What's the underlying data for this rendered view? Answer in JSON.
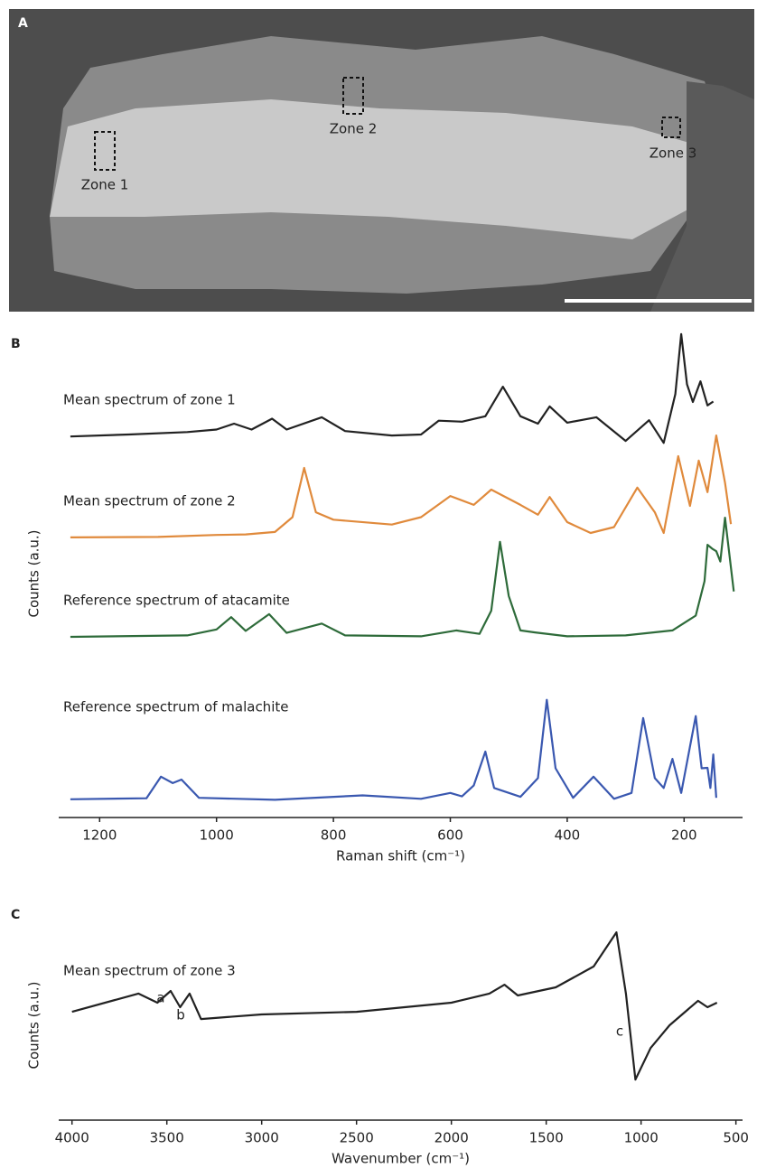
{
  "panels": [
    "A",
    "B",
    "C"
  ],
  "image": {
    "zones": [
      "Zone 1",
      "Zone 2",
      "Zone 3"
    ]
  },
  "chart_data": [
    {
      "type": "line",
      "xlabel": "Raman shift (cm⁻¹)",
      "ylabel": "Counts (a.u.)",
      "xlim": [
        1270,
        100
      ],
      "xticks": [
        1200,
        1000,
        800,
        600,
        400,
        200
      ],
      "ylim": [
        0,
        100
      ],
      "series": [
        {
          "name": "Mean spectrum of zone 1",
          "color": "#222222",
          "x": [
            1250,
            1150,
            1050,
            1000,
            970,
            940,
            905,
            880,
            820,
            780,
            700,
            650,
            620,
            580,
            540,
            510,
            480,
            450,
            430,
            400,
            350,
            300,
            260,
            235,
            215,
            205,
            195,
            185,
            172,
            160,
            150
          ],
          "values": [
            77.4,
            77.8,
            78.3,
            78.8,
            80.0,
            78.8,
            81.0,
            78.8,
            81.3,
            78.5,
            77.6,
            77.8,
            80.6,
            80.4,
            81.5,
            87.5,
            81.5,
            80.0,
            83.5,
            80.2,
            81.3,
            76.5,
            80.7,
            76.1,
            86,
            98.2,
            88,
            84.4,
            88.6,
            83.7,
            84.5
          ]
        },
        {
          "name": "Mean spectrum of zone 2",
          "color": "#e08a3c",
          "x": [
            1250,
            1100,
            1000,
            950,
            900,
            870,
            850,
            830,
            800,
            700,
            650,
            600,
            560,
            530,
            480,
            450,
            430,
            400,
            360,
            320,
            280,
            250,
            235,
            210,
            190,
            175,
            160,
            145,
            130,
            120
          ],
          "values": [
            56.9,
            57.0,
            57.4,
            57.5,
            58.0,
            61.0,
            71.0,
            62.0,
            60.5,
            59.5,
            61.0,
            65.3,
            63.5,
            66.6,
            63.5,
            61.5,
            65.1,
            60.0,
            57.8,
            59.0,
            67.0,
            62.0,
            57.8,
            73.4,
            63.3,
            72.5,
            66.1,
            77.6,
            68.0,
            59.6
          ]
        },
        {
          "name": "Reference spectrum of atacamite",
          "color": "#2e6b3a",
          "x": [
            1250,
            1050,
            1000,
            975,
            950,
            910,
            880,
            820,
            780,
            650,
            590,
            550,
            530,
            515,
            500,
            480,
            455,
            400,
            300,
            220,
            180,
            165,
            160,
            152,
            145,
            138,
            130,
            115
          ],
          "values": [
            36.7,
            37.0,
            38.2,
            40.7,
            37.9,
            41.3,
            37.5,
            39.4,
            37.0,
            36.8,
            38.0,
            37.3,
            42.0,
            56.0,
            45.0,
            38.0,
            37.6,
            36.8,
            37.0,
            38.0,
            41.0,
            48.0,
            55.4,
            54.6,
            54.1,
            52.0,
            60.9,
            45.9
          ]
        },
        {
          "name": "Reference spectrum of malachite",
          "color": "#3a58b0",
          "x": [
            1250,
            1120,
            1095,
            1075,
            1060,
            1030,
            900,
            750,
            720,
            650,
            600,
            580,
            560,
            540,
            525,
            480,
            450,
            435,
            420,
            390,
            355,
            320,
            290,
            270,
            250,
            235,
            220,
            205,
            180,
            170,
            160,
            155,
            150,
            145
          ],
          "values": [
            3.7,
            3.9,
            8.3,
            7.0,
            7.7,
            4.0,
            3.6,
            4.5,
            4.3,
            3.8,
            5.0,
            4.3,
            6.5,
            13.4,
            6.0,
            4.2,
            8.0,
            23.9,
            10.0,
            4.0,
            8.3,
            3.8,
            5.0,
            20.2,
            8.0,
            6.0,
            11.9,
            5.0,
            20.6,
            10.0,
            10.1,
            6.0,
            12.8,
            4.0
          ]
        }
      ]
    },
    {
      "type": "line",
      "xlabel": "Wavenumber (cm⁻¹)",
      "ylabel": "Counts (a.u.)",
      "xlim": [
        4070,
        465
      ],
      "xticks": [
        4000,
        3500,
        3000,
        2500,
        2000,
        1500,
        1000,
        500
      ],
      "ylim": [
        0,
        100
      ],
      "annotations": [
        "a",
        "b",
        "c"
      ],
      "series": [
        {
          "name": "Mean spectrum of zone 3",
          "color": "#222222",
          "x": [
            4000,
            3650,
            3550,
            3480,
            3430,
            3380,
            3320,
            3000,
            2500,
            2000,
            1800,
            1720,
            1650,
            1450,
            1250,
            1130,
            1080,
            1030,
            950,
            850,
            700,
            650,
            600
          ],
          "values": [
            57.1,
            66.7,
            61.9,
            68.1,
            59.5,
            66.7,
            53.3,
            55.7,
            57.1,
            61.9,
            66.7,
            71.4,
            65.7,
            70,
            81,
            99,
            66.7,
            21.4,
            38,
            50,
            62.9,
            59.5,
            61.9
          ]
        }
      ]
    }
  ]
}
